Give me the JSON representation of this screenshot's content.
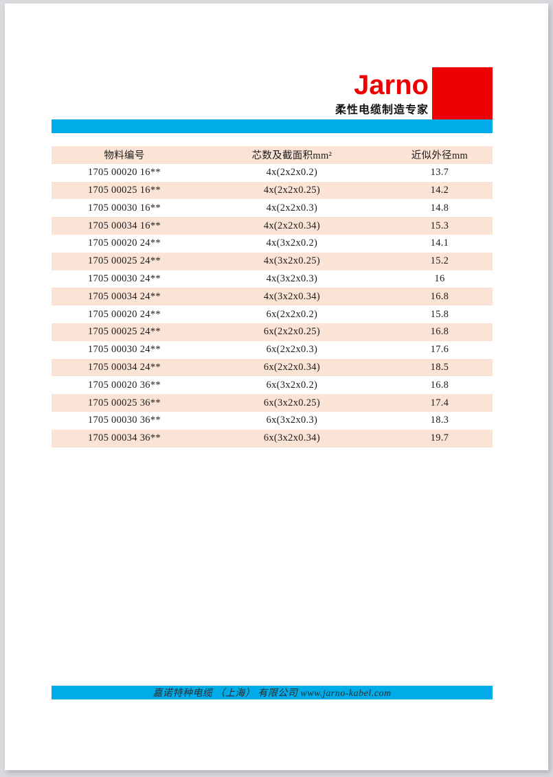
{
  "logo": {
    "brand": "Jarno",
    "tagline": "柔性电缆制造专家"
  },
  "colors": {
    "brand_red": "#ee0000",
    "accent_cyan": "#00ace8",
    "row_peach": "#fbe3d5"
  },
  "table": {
    "columns": [
      "物料编号",
      "芯数及截面积mm²",
      "近似外径mm"
    ],
    "rows": [
      [
        "1705 00020 16**",
        "4x(2x2x0.2)",
        "13.7"
      ],
      [
        "1705 00025 16**",
        "4x(2x2x0.25)",
        "14.2"
      ],
      [
        "1705 00030 16**",
        "4x(2x2x0.3)",
        "14.8"
      ],
      [
        "1705 00034 16**",
        "4x(2x2x0.34)",
        "15.3"
      ],
      [
        "1705 00020 24**",
        "4x(3x2x0.2)",
        "14.1"
      ],
      [
        "1705 00025 24**",
        "4x(3x2x0.25)",
        "15.2"
      ],
      [
        "1705 00030 24**",
        "4x(3x2x0.3)",
        "16"
      ],
      [
        "1705 00034 24**",
        "4x(3x2x0.34)",
        "16.8"
      ],
      [
        "1705 00020 24**",
        "6x(2x2x0.2)",
        "15.8"
      ],
      [
        "1705 00025 24**",
        "6x(2x2x0.25)",
        "16.8"
      ],
      [
        "1705 00030 24**",
        "6x(2x2x0.3)",
        "17.6"
      ],
      [
        "1705 00034 24**",
        "6x(2x2x0.34)",
        "18.5"
      ],
      [
        "1705 00020 36**",
        "6x(3x2x0.2)",
        "16.8"
      ],
      [
        "1705 00025 36**",
        "6x(3x2x0.25)",
        "17.4"
      ],
      [
        "1705 00030 36**",
        "6x(3x2x0.3)",
        "18.3"
      ],
      [
        "1705 00034 36**",
        "6x(3x2x0.34)",
        "19.7"
      ]
    ]
  },
  "footer": {
    "text": "嘉诺特种电缆 （上海） 有限公司 www.jarno-kabel.com"
  }
}
